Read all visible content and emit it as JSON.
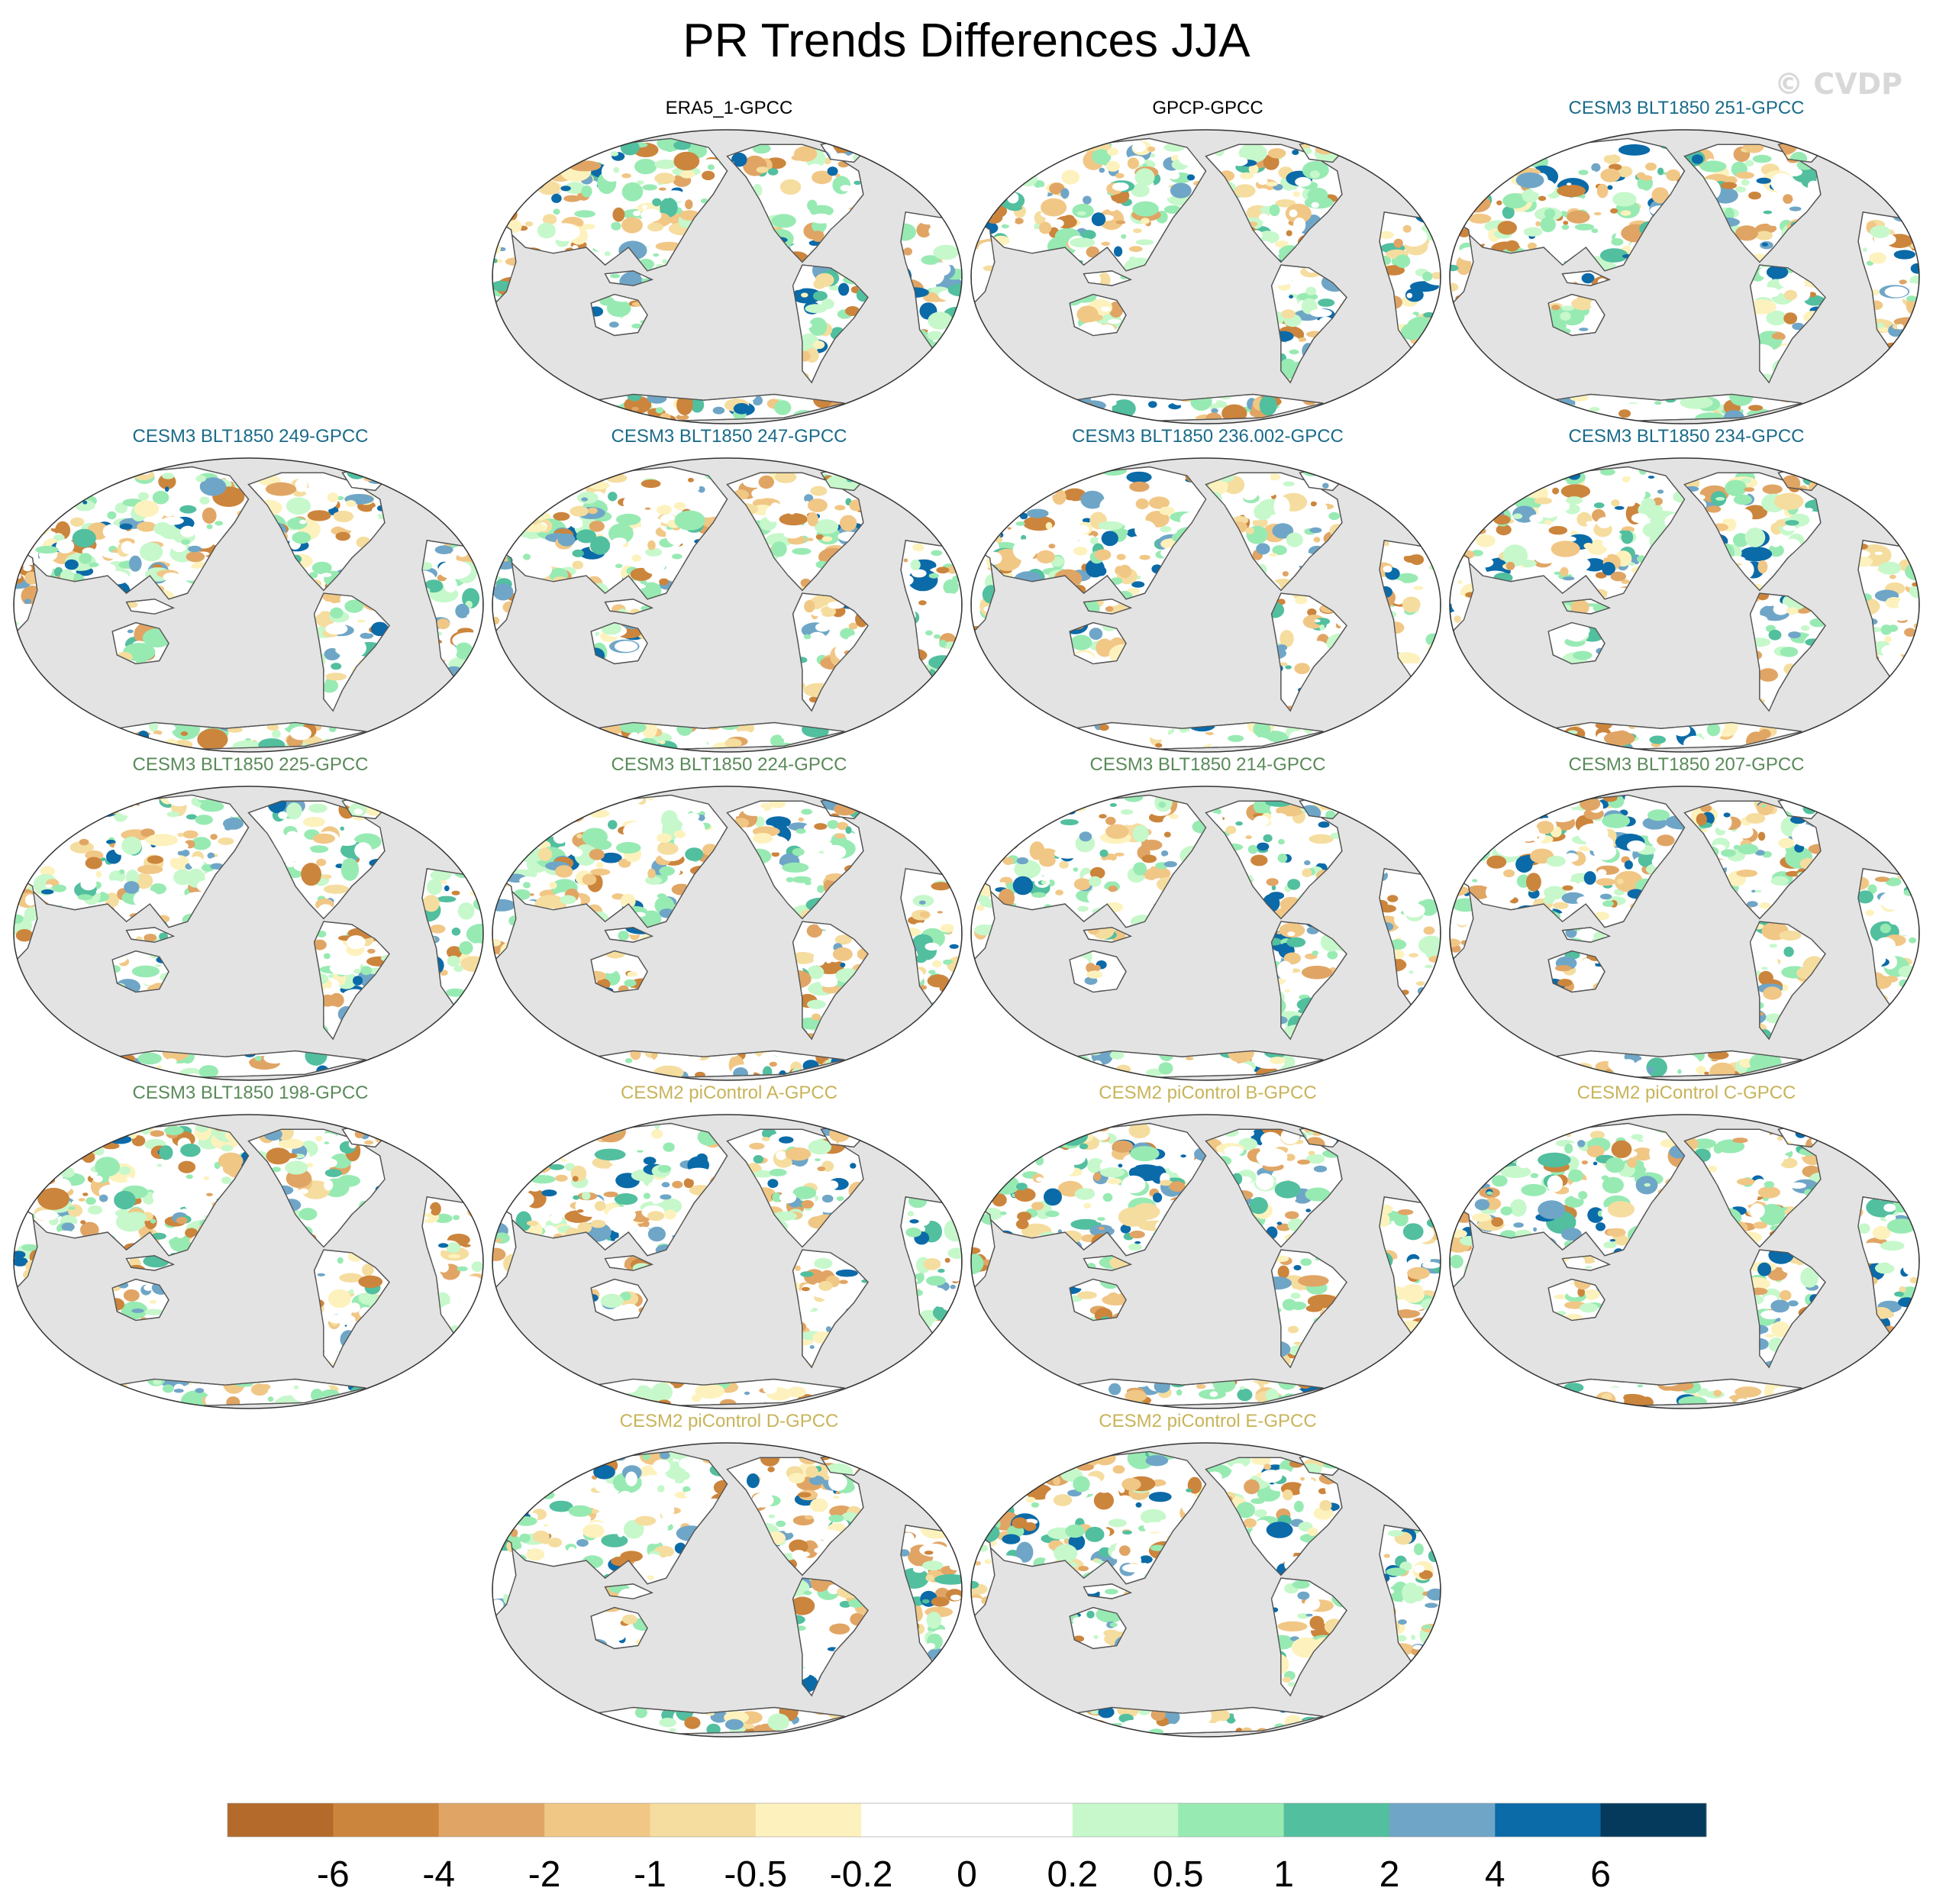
{
  "title": "PR Trends Differences JJA",
  "watermark": "© CVDP",
  "panels": [
    {
      "label": "ERA5_1-GPCC",
      "color": "#000000",
      "seed": 11
    },
    {
      "label": "GPCP-GPCC",
      "color": "#000000",
      "seed": 23
    },
    {
      "label": "CESM3 BLT1850 251-GPCC",
      "color": "#1a6b8a",
      "seed": 37
    },
    {
      "label": "CESM3 BLT1850 249-GPCC",
      "color": "#1a6b8a",
      "seed": 41
    },
    {
      "label": "CESM3 BLT1850 247-GPCC",
      "color": "#1a6b8a",
      "seed": 53
    },
    {
      "label": "CESM3 BLT1850 236.002-GPCC",
      "color": "#1a6b8a",
      "seed": 67
    },
    {
      "label": "CESM3 BLT1850 234-GPCC",
      "color": "#1a6b8a",
      "seed": 71
    },
    {
      "label": "CESM3 BLT1850 225-GPCC",
      "color": "#5a8a5a",
      "seed": 83
    },
    {
      "label": "CESM3 BLT1850 224-GPCC",
      "color": "#5a8a5a",
      "seed": 97
    },
    {
      "label": "CESM3 BLT1850 214-GPCC",
      "color": "#5a8a5a",
      "seed": 101
    },
    {
      "label": "CESM3 BLT1850 207-GPCC",
      "color": "#5a8a5a",
      "seed": 113
    },
    {
      "label": "CESM3 BLT1850 198-GPCC",
      "color": "#5a8a5a",
      "seed": 127
    },
    {
      "label": "CESM2 piControl A-GPCC",
      "color": "#c8b45a",
      "seed": 131
    },
    {
      "label": "CESM2 piControl B-GPCC",
      "color": "#c8b45a",
      "seed": 149
    },
    {
      "label": "CESM2 piControl C-GPCC",
      "color": "#c8b45a",
      "seed": 157
    },
    {
      "label": "CESM2 piControl D-GPCC",
      "color": "#c8b45a",
      "seed": 163
    },
    {
      "label": "CESM2 piControl E-GPCC",
      "color": "#c8b45a",
      "seed": 173
    }
  ],
  "colorbar": {
    "colors": [
      "#b36a2a",
      "#cc853c",
      "#e0a564",
      "#f1c786",
      "#f5dd9f",
      "#fdf2bd",
      "#ffffff",
      "#ffffff",
      "#c6f8cb",
      "#98eab3",
      "#52bf9f",
      "#6fa6c7",
      "#0b6aa8",
      "#053a5c"
    ],
    "labels": [
      "-6",
      "-4",
      "-2",
      "-1",
      "-0.5",
      "-0.2",
      "0",
      "0.2",
      "0.5",
      "1",
      "2",
      "4",
      "6"
    ]
  },
  "map_style": {
    "ocean": "#e3e3e3",
    "land": "#ffffff",
    "coast": "#555555"
  }
}
